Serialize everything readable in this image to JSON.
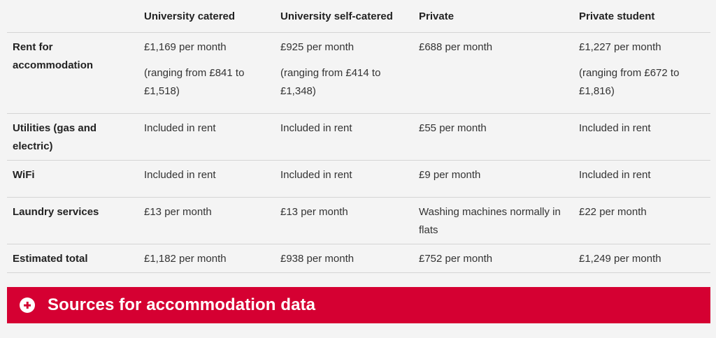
{
  "table": {
    "headers": [
      "",
      "University catered",
      "University self-catered",
      "Private",
      "Private student"
    ],
    "rows": [
      {
        "label": "Rent for accommodation",
        "cells": [
          {
            "value": "£1,169 per month",
            "note": "(ranging from £841 to £1,518)"
          },
          {
            "value": "£925 per month",
            "note": "(ranging from £414 to £1,348)"
          },
          {
            "value": "£688 per month",
            "note": ""
          },
          {
            "value": "£1,227 per month",
            "note": "(ranging from £672 to £1,816)"
          }
        ]
      },
      {
        "label": "Utilities (gas and electric)",
        "cells": [
          {
            "value": "Included in rent"
          },
          {
            "value": "Included in rent"
          },
          {
            "value": "£55 per month"
          },
          {
            "value": "Included in rent"
          }
        ]
      },
      {
        "label": "WiFi",
        "cells": [
          {
            "value": "Included in rent"
          },
          {
            "value": "Included in rent"
          },
          {
            "value": "£9 per month"
          },
          {
            "value": "Included in rent"
          }
        ]
      },
      {
        "label": "Laundry services",
        "cells": [
          {
            "value": "£13 per month"
          },
          {
            "value": "£13 per month"
          },
          {
            "value": "Washing machines normally in flats"
          },
          {
            "value": "£22 per month"
          }
        ]
      },
      {
        "label": "Estimated total",
        "cells": [
          {
            "value": "£1,182 per month"
          },
          {
            "value": "£938 per month"
          },
          {
            "value": "£752 per month"
          },
          {
            "value": "£1,249 per month"
          }
        ]
      }
    ]
  },
  "accordion": {
    "label": "Sources for accommodation data",
    "icon": "plus-circle-icon",
    "color": "#d50032"
  },
  "colors": {
    "background": "#f4f4f4",
    "accent": "#d50032",
    "text": "#333333",
    "divider": "#d4d4d4"
  }
}
